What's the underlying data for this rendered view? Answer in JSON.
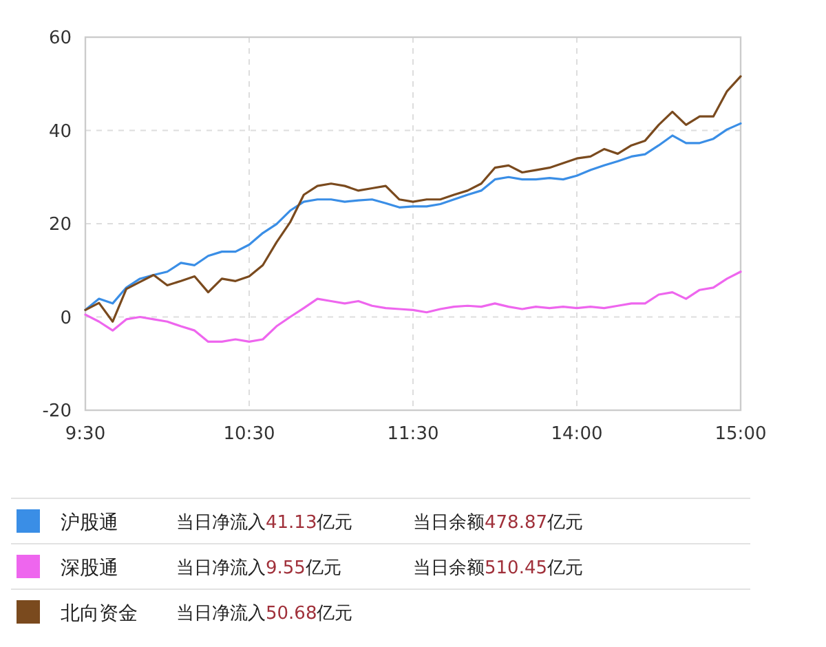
{
  "chart_data": {
    "type": "line",
    "ylim": [
      -20,
      60
    ],
    "yticks": [
      -20,
      0,
      20,
      40,
      60
    ],
    "categories": [
      "9:30",
      null,
      null,
      null,
      null,
      null,
      null,
      null,
      null,
      null,
      null,
      null,
      "10:30",
      null,
      null,
      null,
      null,
      null,
      null,
      null,
      null,
      null,
      null,
      null,
      "11:30",
      null,
      null,
      null,
      null,
      null,
      null,
      null,
      null,
      null,
      null,
      null,
      "14:00",
      null,
      null,
      null,
      null,
      null,
      null,
      null,
      null,
      null,
      null,
      null,
      "15:00"
    ],
    "series": [
      {
        "name": "沪股通",
        "color": "#3a8ee6",
        "values": [
          1.5,
          3.9,
          2.9,
          6.3,
          8.2,
          9,
          9.7,
          11.6,
          11.1,
          13.1,
          14,
          14,
          15.5,
          18,
          19.9,
          22.8,
          24.7,
          25.2,
          25.2,
          24.7,
          25,
          25.2,
          24.4,
          23.5,
          23.7,
          23.7,
          24.2,
          25.2,
          26.2,
          27.1,
          29.5,
          30,
          29.5,
          29.5,
          29.8,
          29.5,
          30.3,
          31.5,
          32.5,
          33.4,
          34.4,
          34.9,
          36.8,
          38.9,
          37.3,
          37.3,
          38.2,
          40.2,
          41.5
        ]
      },
      {
        "name": "深股通",
        "color": "#ee66ee",
        "values": [
          0.5,
          -1,
          -2.9,
          -0.5,
          0,
          -0.5,
          -1,
          -2,
          -2.9,
          -5.3,
          -5.3,
          -4.8,
          -5.3,
          -4.8,
          -2,
          0,
          1.9,
          3.9,
          3.4,
          2.9,
          3.4,
          2.4,
          1.9,
          1.7,
          1.5,
          1,
          1.7,
          2.2,
          2.4,
          2.2,
          2.9,
          2.2,
          1.7,
          2.2,
          1.9,
          2.2,
          1.9,
          2.2,
          1.9,
          2.4,
          2.9,
          2.9,
          4.8,
          5.3,
          3.9,
          5.8,
          6.3,
          8.2,
          9.7
        ]
      },
      {
        "name": "北向资金",
        "color": "#7a4a1e",
        "values": [
          1.5,
          3,
          -1,
          6,
          7.5,
          9,
          6.8,
          7.7,
          8.7,
          5.3,
          8.2,
          7.7,
          8.7,
          11.1,
          16,
          20.3,
          26.2,
          28.1,
          28.6,
          28.1,
          27.1,
          27.6,
          28.1,
          25.2,
          24.7,
          25.2,
          25.2,
          26.2,
          27.1,
          28.6,
          32,
          32.5,
          31,
          31.5,
          32,
          33,
          34,
          34.4,
          36,
          35,
          36.8,
          37.8,
          41.2,
          44,
          41.2,
          43,
          43,
          48.4,
          51.6
        ]
      }
    ],
    "annotations": [
      "当日净流入41.13亿元",
      "当日余额478.87亿元",
      "当日净流入9.55亿元",
      "当日余额510.45亿元",
      "当日净流入50.68亿元"
    ],
    "grid": true,
    "legend": "bottom",
    "marker": "none",
    "line_style": "solid"
  }
}
